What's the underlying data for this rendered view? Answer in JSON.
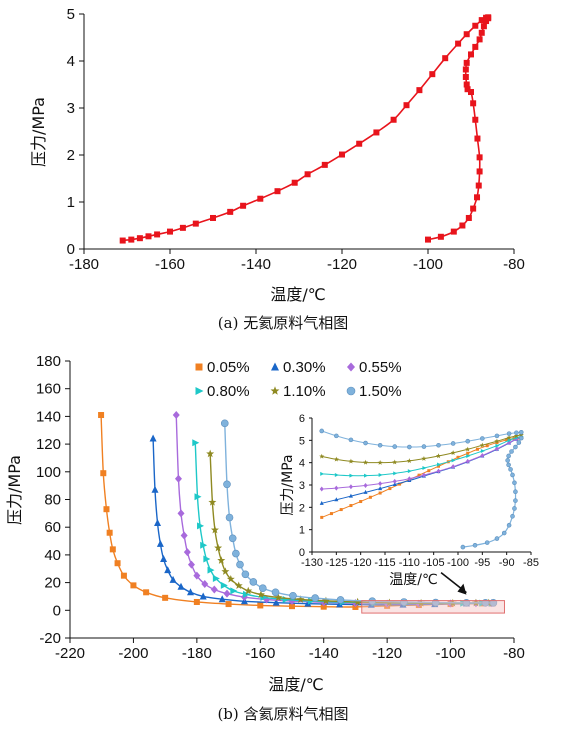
{
  "chart_data": [
    {
      "type": "line",
      "caption": "(a) 无氦原料气相图",
      "xlabel": "温度/℃",
      "ylabel": "压力/MPa",
      "xlim": [
        -180,
        -80
      ],
      "ylim": [
        0,
        5
      ],
      "xticks": [
        "-180",
        "-160",
        "-140",
        "-120",
        "-100",
        "-80"
      ],
      "yticks": [
        "0",
        "1",
        "2",
        "3",
        "4",
        "5"
      ],
      "grid": false,
      "series": [
        {
          "color": "#e8141c",
          "marker": "square",
          "x": [
            -171,
            -169,
            -167,
            -165,
            -163,
            -160,
            -157,
            -154,
            -150,
            -146,
            -143,
            -139,
            -135,
            -131,
            -128,
            -124,
            -120,
            -116,
            -112,
            -108,
            -105,
            -102,
            -99,
            -96,
            -93,
            -91,
            -89,
            -87.5,
            -86.5,
            -86,
            -86,
            -86.5,
            -87,
            -87.5,
            -88,
            -89,
            -90,
            -91,
            -91.2,
            -91.2,
            -91,
            -90.8,
            -90,
            -89.5,
            -89,
            -88.5,
            -88,
            -88,
            -88.2,
            -88.6,
            -89.5,
            -90.5,
            -92,
            -94,
            -97,
            -100
          ],
          "y": [
            0.18,
            0.2,
            0.23,
            0.27,
            0.31,
            0.37,
            0.45,
            0.54,
            0.66,
            0.79,
            0.92,
            1.07,
            1.23,
            1.41,
            1.59,
            1.79,
            2.01,
            2.24,
            2.48,
            2.75,
            3.06,
            3.38,
            3.72,
            4.06,
            4.37,
            4.57,
            4.75,
            4.87,
            4.92,
            4.93,
            4.91,
            4.85,
            4.74,
            4.6,
            4.46,
            4.3,
            4.14,
            3.96,
            3.82,
            3.66,
            3.5,
            3.4,
            3.34,
            3.1,
            2.75,
            2.35,
            1.95,
            1.65,
            1.35,
            1.1,
            0.86,
            0.66,
            0.5,
            0.37,
            0.26,
            0.2
          ]
        }
      ]
    },
    {
      "type": "line",
      "caption": "(b) 含氦原料气相图",
      "xlabel": "温度/℃",
      "ylabel": "压力/MPa",
      "xlim": [
        -220,
        -80
      ],
      "ylim": [
        -20,
        180
      ],
      "xticks": [
        "-220",
        "-200",
        "-180",
        "-160",
        "-140",
        "-120",
        "-100",
        "-80"
      ],
      "yticks": [
        "-20",
        "0",
        "20",
        "40",
        "60",
        "80",
        "100",
        "120",
        "140",
        "160",
        "180"
      ],
      "grid": false,
      "legend": "top",
      "series": [
        {
          "name": "0.05%",
          "color": "#f08022",
          "marker": "square",
          "x": [
            -210.2,
            -209.5,
            -208.5,
            -207.5,
            -206.5,
            -205,
            -203,
            -200,
            -196,
            -190,
            -180,
            -170,
            -160,
            -150,
            -140,
            -130,
            -120,
            -110,
            -100,
            -90,
            -87
          ],
          "y": [
            141,
            99,
            73,
            56,
            44,
            34,
            25,
            18,
            13,
            9,
            6,
            4.5,
            3.5,
            3,
            2.6,
            2.4,
            3.2,
            3.8,
            4.5,
            5,
            5
          ]
        },
        {
          "name": "0.30%",
          "color": "#1a66c8",
          "marker": "triangle",
          "x": [
            -193.8,
            -193.2,
            -192.4,
            -191.5,
            -190.5,
            -189.2,
            -187.5,
            -185,
            -182,
            -178,
            -172,
            -165,
            -155,
            -145,
            -135,
            -125,
            -115,
            -105,
            -95,
            -87
          ],
          "y": [
            124,
            87,
            63,
            48,
            37,
            29,
            22,
            17,
            13,
            10,
            8,
            6.5,
            5.5,
            4.8,
            4.3,
            4,
            4.1,
            4.5,
            5,
            5.1
          ]
        },
        {
          "name": "0.55%",
          "color": "#a86adc",
          "marker": "diamond",
          "x": [
            -186.5,
            -185.8,
            -185,
            -184,
            -183,
            -181.7,
            -180,
            -177.5,
            -174.5,
            -170.5,
            -165,
            -158,
            -150,
            -140,
            -130,
            -120,
            -110,
            -100,
            -92,
            -87
          ],
          "y": [
            141,
            95,
            70,
            54,
            42,
            33,
            25,
            19,
            15,
            12,
            9.5,
            7.8,
            6.7,
            5.8,
            5.2,
            4.8,
            4.7,
            4.9,
            5.1,
            5.2
          ]
        },
        {
          "name": "0.80%",
          "color": "#1ec8c8",
          "marker": "triangle-right",
          "x": [
            -180.5,
            -179.8,
            -179,
            -178,
            -177,
            -175.7,
            -174,
            -171.5,
            -168.5,
            -164.5,
            -159,
            -152,
            -144,
            -134,
            -124,
            -114,
            -104,
            -96,
            -90,
            -87
          ],
          "y": [
            121,
            82,
            61,
            47,
            37,
            29,
            23,
            18,
            14,
            11.5,
            9.3,
            7.8,
            6.7,
            5.9,
            5.4,
            5.1,
            5,
            5.1,
            5.2,
            5.2
          ]
        },
        {
          "name": "1.10%",
          "color": "#8f8a22",
          "marker": "star",
          "x": [
            -175.8,
            -175.1,
            -174.3,
            -173.3,
            -172.3,
            -171,
            -169.3,
            -166.8,
            -163.8,
            -159.8,
            -154.3,
            -147.3,
            -139.3,
            -129.3,
            -119.3,
            -109.3,
            -99.3,
            -92,
            -88,
            -86.5
          ],
          "y": [
            113,
            78,
            58,
            45,
            36,
            28,
            22.5,
            17.8,
            14,
            11.3,
            9.2,
            7.8,
            6.8,
            6,
            5.5,
            5.2,
            5.2,
            5.3,
            5.3,
            5.3
          ]
        },
        {
          "name": "1.50%",
          "color": "#7fb2dc",
          "marker": "circle",
          "x": [
            -171.2,
            -170.5,
            -169.7,
            -168.7,
            -167.7,
            -166.4,
            -164.7,
            -162.2,
            -159.2,
            -155.2,
            -149.7,
            -142.7,
            -134.7,
            -124.7,
            -114.7,
            -104.7,
            -95,
            -89,
            -86.5
          ],
          "y": [
            135,
            91,
            67,
            52,
            41,
            33,
            26,
            20.5,
            16,
            13,
            10.5,
            8.8,
            7.5,
            6.6,
            6,
            5.6,
            5.4,
            5.4,
            5.4
          ]
        }
      ],
      "highlight_box": {
        "x": [
          -128,
          -83
        ],
        "y": [
          -2,
          7
        ]
      },
      "inset": {
        "xlabel": "温度/℃",
        "ylabel": "压力/MPa",
        "xlim": [
          -130,
          -85
        ],
        "ylim": [
          0,
          6
        ],
        "xticks": [
          "-130",
          "-125",
          "-120",
          "-115",
          "-110",
          "-105",
          "-100",
          "-95",
          "-90",
          "-85"
        ],
        "yticks": [
          "0",
          "1",
          "2",
          "3",
          "4",
          "5",
          "6"
        ],
        "series": [
          {
            "name": "0.05%",
            "color": "#f08022",
            "marker": "square",
            "x": [
              -128,
              -126,
              -124,
              -122,
              -120,
              -118,
              -116,
              -114,
              -112,
              -110,
              -108,
              -106,
              -104,
              -102,
              -100,
              -98,
              -96,
              -94,
              -92,
              -90,
              -88.5,
              -87.5,
              -87
            ],
            "y": [
              1.55,
              1.72,
              1.9,
              2.08,
              2.26,
              2.45,
              2.64,
              2.84,
              3.04,
              3.24,
              3.44,
              3.64,
              3.84,
              4.04,
              4.24,
              4.42,
              4.6,
              4.76,
              4.9,
              5.02,
              5.08,
              5.1,
              5.08
            ]
          },
          {
            "name": "0.30%",
            "color": "#1a66c8",
            "marker": "triangle",
            "x": [
              -128,
              -125,
              -122,
              -119,
              -116,
              -113,
              -110,
              -107,
              -104,
              -101,
              -98,
              -95,
              -92,
              -89.5,
              -88,
              -87
            ],
            "y": [
              2.18,
              2.34,
              2.5,
              2.67,
              2.84,
              3.02,
              3.2,
              3.4,
              3.6,
              3.8,
              4.04,
              4.3,
              4.6,
              4.88,
              5.05,
              5.12
            ]
          },
          {
            "name": "0.55%",
            "color": "#a86adc",
            "marker": "diamond",
            "x": [
              -128,
              -125,
              -122,
              -119,
              -116,
              -113,
              -110,
              -107,
              -104,
              -101,
              -98,
              -95,
              -92,
              -89.5,
              -88,
              -87
            ],
            "y": [
              2.82,
              2.86,
              2.92,
              2.98,
              3.06,
              3.16,
              3.28,
              3.44,
              3.62,
              3.82,
              4.06,
              4.32,
              4.62,
              4.9,
              5.06,
              5.14
            ]
          },
          {
            "name": "0.80%",
            "color": "#1ec8c8",
            "marker": "triangle-right",
            "x": [
              -128,
              -125,
              -122,
              -119,
              -116,
              -113,
              -110,
              -107,
              -104,
              -101,
              -98,
              -95,
              -92,
              -89.5,
              -88,
              -87
            ],
            "y": [
              3.5,
              3.45,
              3.42,
              3.42,
              3.45,
              3.52,
              3.62,
              3.76,
              3.92,
              4.1,
              4.3,
              4.52,
              4.76,
              5,
              5.12,
              5.18
            ]
          },
          {
            "name": "1.10%",
            "color": "#8f8a22",
            "marker": "star",
            "x": [
              -128,
              -125,
              -122,
              -119,
              -116,
              -113,
              -110,
              -107,
              -104,
              -101,
              -98,
              -95,
              -92,
              -89.5,
              -88,
              -87
            ],
            "y": [
              4.28,
              4.15,
              4.06,
              4.01,
              4,
              4.02,
              4.08,
              4.18,
              4.3,
              4.44,
              4.6,
              4.78,
              4.96,
              5.12,
              5.2,
              5.24
            ]
          },
          {
            "name": "1.50%",
            "color": "#7fb2dc",
            "marker": "circle",
            "x": [
              -128,
              -125,
              -122,
              -119,
              -116,
              -113,
              -110,
              -107,
              -104,
              -101,
              -98,
              -95,
              -92,
              -89.5,
              -88,
              -87
            ],
            "y": [
              5.42,
              5.2,
              5.02,
              4.88,
              4.78,
              4.72,
              4.7,
              4.72,
              4.78,
              4.86,
              4.96,
              5.08,
              5.2,
              5.3,
              5.34,
              5.36
            ]
          }
        ],
        "dew_branch": {
          "color": "#7fb2dc",
          "x": [
            -87,
            -87.5,
            -88.2,
            -89,
            -89.6,
            -89.8,
            -89.6,
            -89.2,
            -88.8,
            -88.4,
            -88.2,
            -88.2,
            -88.4,
            -88.8,
            -89.5,
            -90.5,
            -92,
            -94,
            -96.5,
            -99
          ],
          "y": [
            5.1,
            4.9,
            4.7,
            4.5,
            4.3,
            4.1,
            3.9,
            3.7,
            3.45,
            3.1,
            2.7,
            2.3,
            1.95,
            1.6,
            1.2,
            0.85,
            0.6,
            0.42,
            0.3,
            0.22
          ]
        }
      }
    }
  ]
}
